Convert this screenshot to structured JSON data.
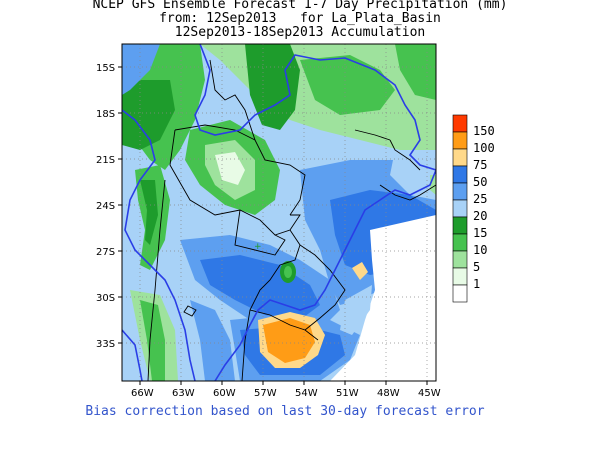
{
  "header": {
    "line1": "NCEP GFS Ensemble Forecast 1-7 Day Precipitation (mm)",
    "line2": "from: 12Sep2013   for La_Plata_Basin",
    "line3": "12Sep2013-18Sep2013 Accumulation"
  },
  "axes": {
    "lat_labels": [
      "15S",
      "18S",
      "21S",
      "24S",
      "27S",
      "30S",
      "33S"
    ],
    "lon_labels": [
      "66W",
      "63W",
      "60W",
      "57W",
      "54W",
      "51W",
      "48W",
      "45W"
    ]
  },
  "legend": {
    "items": [
      {
        "label": "150",
        "color": "#ff3a00"
      },
      {
        "label": "100",
        "color": "#ff9c16"
      },
      {
        "label": "75",
        "color": "#ffd98a"
      },
      {
        "label": "50",
        "color": "#2f78e6"
      },
      {
        "label": "25",
        "color": "#5d9ff0"
      },
      {
        "label": "20",
        "color": "#a8d2f7"
      },
      {
        "label": "15",
        "color": "#1e9c2c"
      },
      {
        "label": "10",
        "color": "#46c24f"
      },
      {
        "label": "5",
        "color": "#9ee29d"
      },
      {
        "label": "1",
        "color": "#e8fbe6"
      }
    ],
    "bottom_color": "#ffffff"
  },
  "footnote": "Bias correction based on last 30-day forecast error",
  "colors": {
    "basin_outline": "#2a3ee6",
    "country_border": "#000000",
    "grid": "#888888"
  }
}
